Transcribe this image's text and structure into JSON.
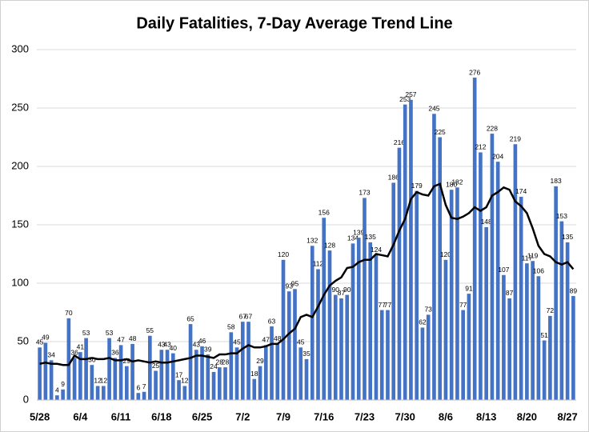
{
  "chart_data": {
    "type": "bar",
    "title": "Daily Fatalities, 7-Day Average Trend Line",
    "categories": [
      "5/28",
      null,
      null,
      null,
      null,
      null,
      null,
      "6/4",
      null,
      null,
      null,
      null,
      null,
      null,
      "6/11",
      null,
      null,
      null,
      null,
      null,
      null,
      "6/18",
      null,
      null,
      null,
      null,
      null,
      null,
      "6/25",
      null,
      null,
      null,
      null,
      null,
      null,
      "7/2",
      null,
      null,
      null,
      null,
      null,
      null,
      "7/9",
      null,
      null,
      null,
      null,
      null,
      null,
      "7/16",
      null,
      null,
      null,
      null,
      null,
      null,
      "7/23",
      null,
      null,
      null,
      null,
      null,
      null,
      "7/30",
      null,
      null,
      null,
      null,
      null,
      null,
      "8/6",
      null,
      null,
      null,
      null,
      null,
      null,
      "8/13",
      null,
      null,
      null,
      null,
      null,
      null,
      "8/20",
      null,
      null,
      null,
      null,
      null,
      null,
      "8/27",
      null
    ],
    "series": [
      {
        "color": "#4472c4",
        "values": [
          45,
          49,
          34,
          4,
          9,
          70,
          36,
          41,
          53,
          30,
          12,
          12,
          53,
          36,
          47,
          29,
          48,
          6,
          7,
          55,
          25,
          43,
          43,
          40,
          17,
          12,
          65,
          43,
          46,
          39,
          24,
          28,
          28,
          58,
          45,
          67,
          67,
          18,
          29,
          47,
          63,
          48,
          120,
          93,
          95,
          45,
          35,
          132,
          112,
          156,
          128,
          90,
          87,
          90,
          134,
          139,
          173,
          135,
          124,
          77,
          77,
          186,
          216,
          253,
          257,
          179,
          62,
          73,
          245,
          225,
          120,
          180,
          182,
          77,
          91,
          276,
          212,
          148,
          228,
          204,
          107,
          87,
          219,
          174,
          117,
          119,
          106,
          51,
          72,
          183,
          153,
          135,
          89
        ]
      },
      {
        "type": "line",
        "color": "#000000",
        "values": [
          31,
          32,
          31,
          31,
          30,
          30,
          38,
          35,
          35,
          36,
          35,
          35,
          36,
          34,
          34,
          35,
          33,
          34,
          33,
          32,
          33,
          32,
          32,
          33,
          34,
          35,
          36,
          38,
          38,
          37,
          36,
          39,
          39,
          40,
          40,
          44,
          47,
          45,
          45,
          46,
          48,
          48,
          52,
          57,
          61,
          71,
          73,
          71,
          80,
          90,
          98,
          102,
          105,
          113,
          114,
          118,
          120,
          120,
          125,
          124,
          123,
          133,
          145,
          155,
          172,
          178,
          176,
          175,
          183,
          185,
          167,
          156,
          155,
          157,
          160,
          165,
          162,
          165,
          175,
          178,
          182,
          180,
          170,
          166,
          160,
          147,
          132,
          125,
          123,
          118,
          116,
          118,
          112
        ]
      }
    ],
    "ylim": [
      0,
      300
    ],
    "yticks": [
      0,
      50,
      100,
      150,
      200,
      250,
      300
    ],
    "grid": true
  }
}
